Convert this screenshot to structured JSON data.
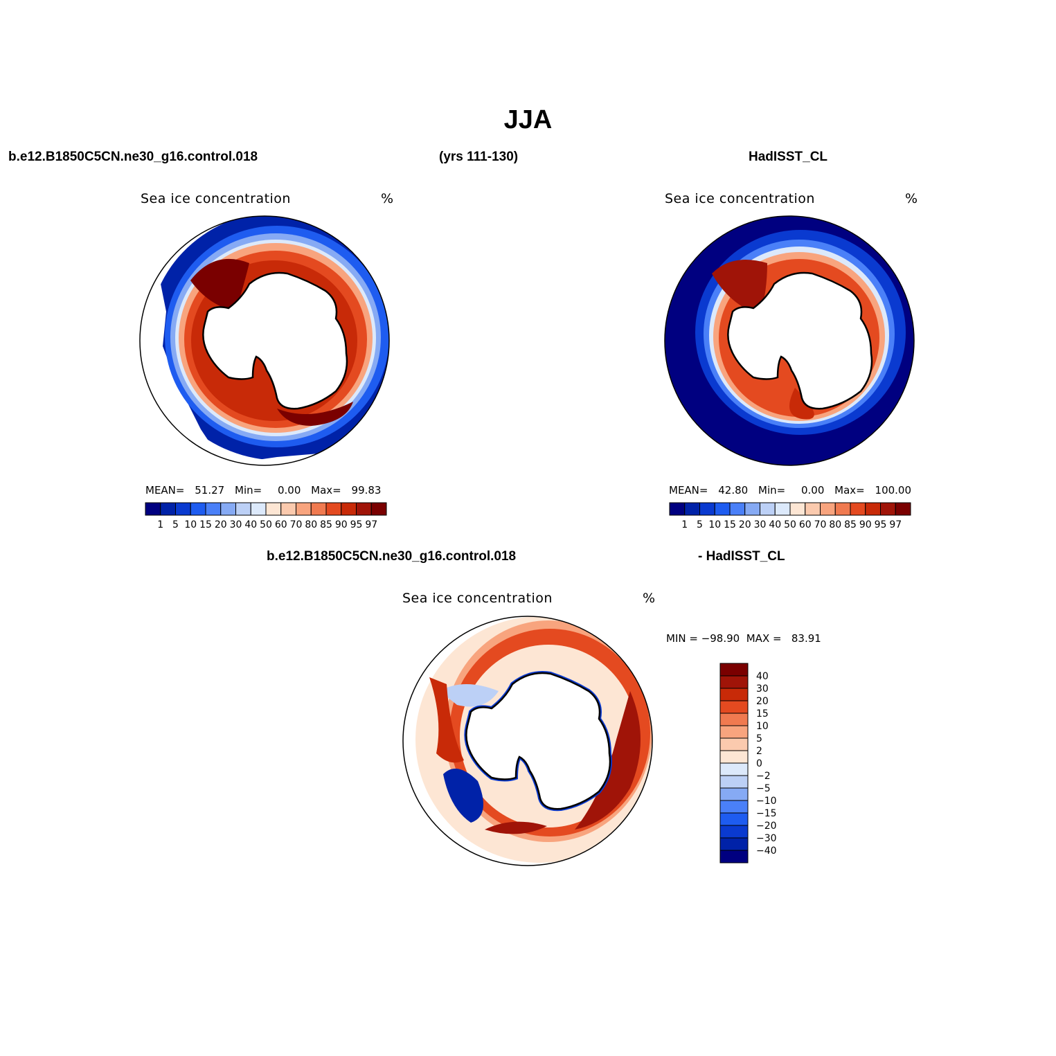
{
  "title": "JJA",
  "header": {
    "left": "b.e12.B1850C5CN.ne30_g16.control.018",
    "center": "(yrs 111-130)",
    "right": "HadISST_CL"
  },
  "diff_header": {
    "left": "b.e12.B1850C5CN.ne30_g16.control.018",
    "right": "- HadISST_CL"
  },
  "panels": [
    {
      "variable": "Sea ice concentration",
      "units": "%",
      "mean_label": "MEAN=",
      "mean": "51.27",
      "min_label": "Min=",
      "min": "0.00",
      "max_label": "Max=",
      "max": "99.83"
    },
    {
      "variable": "Sea ice concentration",
      "units": "%",
      "mean_label": "MEAN=",
      "mean": "42.80",
      "min_label": "Min=",
      "min": "0.00",
      "max_label": "Max=",
      "max": "100.00"
    }
  ],
  "diff_panel": {
    "variable": "Sea ice concentration",
    "units": "%",
    "minmax": "MIN = −98.90  MAX =   83.91"
  },
  "colorbar_levels": [
    "1",
    "5",
    "10",
    "15",
    "20",
    "30",
    "40",
    "50",
    "60",
    "70",
    "80",
    "85",
    "90",
    "95",
    "97"
  ],
  "colorbar_colors": [
    "#000080",
    "#0022a8",
    "#0a3ad0",
    "#1e5cf0",
    "#4a80f8",
    "#86aaf4",
    "#bcd0f6",
    "#dce9fb",
    "#fde6d4",
    "#fbcaae",
    "#f8a47e",
    "#f07a50",
    "#e44a20",
    "#c82a08",
    "#a01408",
    "#7a0000"
  ],
  "diff_levels": [
    "40",
    "30",
    "20",
    "15",
    "10",
    "5",
    "2",
    "0",
    "−2",
    "−5",
    "−10",
    "−15",
    "−20",
    "−30",
    "−40"
  ],
  "diff_colors": [
    "#7a0000",
    "#a01408",
    "#c82a08",
    "#e44a20",
    "#f07a50",
    "#f8a47e",
    "#fbcaae",
    "#fde6d4",
    "#dce9fb",
    "#bcd0f6",
    "#86aaf4",
    "#4a80f8",
    "#1e5cf0",
    "#0a3ad0",
    "#0022a8",
    "#000080"
  ]
}
